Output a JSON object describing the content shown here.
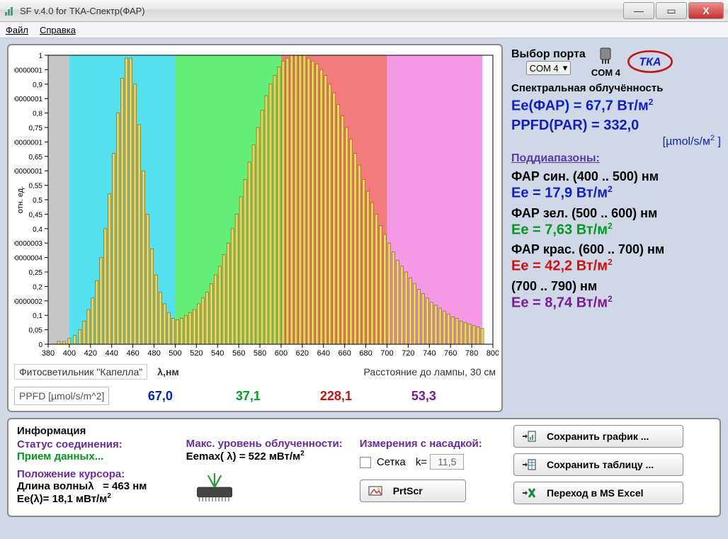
{
  "window": {
    "title": "SF v.4.0 for ТКА-Спектр(ФАР)"
  },
  "menu": {
    "file": "Файл",
    "help": "Справка"
  },
  "port": {
    "label": "Выбор порта",
    "selected": "COM 4",
    "status": "COM  4"
  },
  "chart": {
    "type": "bar_spectrum",
    "xlim": [
      380,
      800
    ],
    "xtick_step": 20,
    "ylim": [
      0,
      1
    ],
    "ytick_step": 0.05,
    "ylabel": "отн. ед.",
    "xlabel": "λ,нм",
    "bar_fill": "#e8d45a",
    "bar_stroke": "#6a5a10",
    "background": "#ffffff",
    "border": "#000000",
    "bands": [
      {
        "from": 380,
        "to": 400,
        "color": "#c6c6c6"
      },
      {
        "from": 400,
        "to": 500,
        "color": "#55e0ef"
      },
      {
        "from": 500,
        "to": 600,
        "color": "#64ee77"
      },
      {
        "from": 600,
        "to": 700,
        "color": "#f47b7b"
      },
      {
        "from": 700,
        "to": 790,
        "color": "#f598e6"
      }
    ],
    "bar_step_nm": 3,
    "series": [
      [
        380,
        0
      ],
      [
        390,
        0.01
      ],
      [
        395,
        0.01
      ],
      [
        400,
        0.02
      ],
      [
        405,
        0.03
      ],
      [
        410,
        0.05
      ],
      [
        414,
        0.08
      ],
      [
        418,
        0.12
      ],
      [
        422,
        0.16
      ],
      [
        426,
        0.22
      ],
      [
        430,
        0.3
      ],
      [
        434,
        0.4
      ],
      [
        438,
        0.52
      ],
      [
        442,
        0.66
      ],
      [
        446,
        0.8
      ],
      [
        450,
        0.92
      ],
      [
        454,
        0.99
      ],
      [
        458,
        0.99
      ],
      [
        462,
        0.9
      ],
      [
        466,
        0.76
      ],
      [
        470,
        0.6
      ],
      [
        474,
        0.45
      ],
      [
        478,
        0.33
      ],
      [
        482,
        0.24
      ],
      [
        486,
        0.18
      ],
      [
        490,
        0.14
      ],
      [
        494,
        0.11
      ],
      [
        498,
        0.09
      ],
      [
        502,
        0.085
      ],
      [
        506,
        0.09
      ],
      [
        510,
        0.1
      ],
      [
        514,
        0.11
      ],
      [
        518,
        0.12
      ],
      [
        522,
        0.14
      ],
      [
        526,
        0.16
      ],
      [
        530,
        0.18
      ],
      [
        534,
        0.21
      ],
      [
        538,
        0.24
      ],
      [
        542,
        0.27
      ],
      [
        546,
        0.31
      ],
      [
        550,
        0.35
      ],
      [
        554,
        0.4
      ],
      [
        558,
        0.45
      ],
      [
        562,
        0.51
      ],
      [
        566,
        0.57
      ],
      [
        570,
        0.63
      ],
      [
        574,
        0.69
      ],
      [
        578,
        0.75
      ],
      [
        582,
        0.81
      ],
      [
        586,
        0.86
      ],
      [
        590,
        0.9
      ],
      [
        594,
        0.93
      ],
      [
        598,
        0.96
      ],
      [
        602,
        0.98
      ],
      [
        606,
        0.99
      ],
      [
        610,
        1.0
      ],
      [
        614,
        1.0
      ],
      [
        618,
        1.0
      ],
      [
        622,
        1.0
      ],
      [
        626,
        0.99
      ],
      [
        630,
        0.98
      ],
      [
        634,
        0.97
      ],
      [
        638,
        0.95
      ],
      [
        642,
        0.93
      ],
      [
        646,
        0.9
      ],
      [
        650,
        0.87
      ],
      [
        654,
        0.83
      ],
      [
        658,
        0.79
      ],
      [
        662,
        0.75
      ],
      [
        666,
        0.71
      ],
      [
        670,
        0.66
      ],
      [
        674,
        0.62
      ],
      [
        678,
        0.57
      ],
      [
        682,
        0.53
      ],
      [
        686,
        0.49
      ],
      [
        690,
        0.45
      ],
      [
        694,
        0.41
      ],
      [
        698,
        0.38
      ],
      [
        702,
        0.35
      ],
      [
        706,
        0.32
      ],
      [
        710,
        0.29
      ],
      [
        714,
        0.27
      ],
      [
        718,
        0.25
      ],
      [
        722,
        0.23
      ],
      [
        726,
        0.21
      ],
      [
        730,
        0.19
      ],
      [
        734,
        0.175
      ],
      [
        738,
        0.16
      ],
      [
        742,
        0.145
      ],
      [
        746,
        0.135
      ],
      [
        750,
        0.125
      ],
      [
        754,
        0.115
      ],
      [
        758,
        0.105
      ],
      [
        762,
        0.095
      ],
      [
        766,
        0.09
      ],
      [
        770,
        0.08
      ],
      [
        774,
        0.075
      ],
      [
        778,
        0.07
      ],
      [
        782,
        0.065
      ],
      [
        786,
        0.06
      ],
      [
        790,
        0.055
      ]
    ]
  },
  "chart_caption": {
    "left": "Фитосветильник \"Капелла\"",
    "right": "Расстояние до лампы, 30 см"
  },
  "ppfd_row": {
    "label": "PPFD [µmol/s/m^2]",
    "values": [
      {
        "v": "67,0",
        "color": "#0022c0"
      },
      {
        "v": "37,1",
        "color": "#00a020"
      },
      {
        "v": "228,1",
        "color": "#d01010"
      },
      {
        "v": "53,3",
        "color": "#7a1999"
      }
    ]
  },
  "results": {
    "header": "Спектральная облучённость",
    "ee_far": {
      "label": "Ee(ФАР) = ",
      "value": "67,7 Вт/м",
      "color": "#1020c8"
    },
    "ppfd": {
      "label": "PPFD(PAR) = ",
      "value": "332,0",
      "unit": "[µmol/s/м",
      "color": "#1020c8"
    },
    "sub_header": "Поддиапазоны:",
    "ranges": [
      {
        "label": "ФАР син. (400 .. 500) нм",
        "value": "Ee = 17,9 Вт/м",
        "color": "#1020c8"
      },
      {
        "label": "ФАР зел. (500 .. 600) нм",
        "value": "Ee = 7,63 Вт/м",
        "color": "#009a20"
      },
      {
        "label": "ФАР крас. (600 .. 700) нм",
        "value": "Ee = 42,2 Вт/м",
        "color": "#d01010"
      },
      {
        "label": "(700 .. 790) нм",
        "value": "Ee = 8,74 Вт/м",
        "color": "#7a1999"
      }
    ]
  },
  "info": {
    "header": "Информация",
    "conn_label": "Статус соединения:",
    "conn_value": "Прием данных...",
    "cursor_label": "Положение курсора:",
    "wavelength_label": "Длина волныλ",
    "wavelength_value": "= 463 нм",
    "ee_lambda": "Ee(λ)= 18,1 мВт/м",
    "max_label": "Макс. уровень облученности:",
    "max_value": "Eemax( λ) = 522 мВт/м",
    "attachment_label": "Измерения с насадкой:",
    "grid_label": "Сетка",
    "k_label": "k=",
    "k_value": "11,5",
    "prtscr": "PrtScr"
  },
  "buttons": {
    "save_chart": "Сохранить график ...",
    "save_table": "Сохранить таблицу ...",
    "excel": "Переход в MS Excel"
  },
  "colors": {
    "purple": "#6a2aa5",
    "green": "#009a20",
    "blue": "#1020c8",
    "red": "#d01010"
  }
}
